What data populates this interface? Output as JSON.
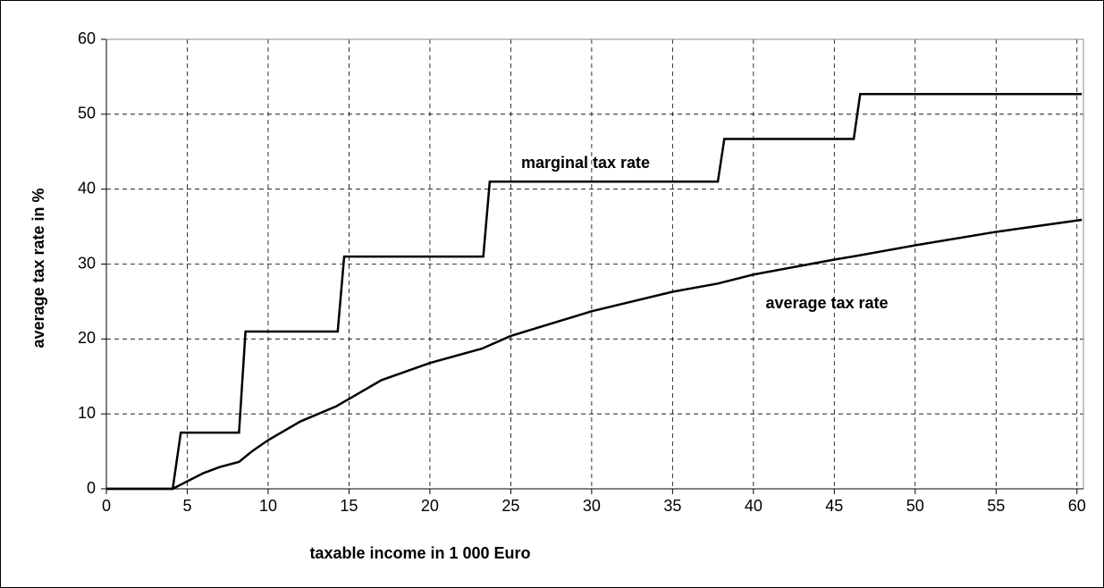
{
  "chart_data": {
    "type": "line",
    "x_label": "taxable income in 1 000 Euro",
    "y_label": "average tax rate in %",
    "xlim": [
      0,
      60.4
    ],
    "ylim": [
      0,
      60
    ],
    "xticks": [
      0,
      5,
      10,
      15,
      20,
      25,
      30,
      35,
      40,
      45,
      50,
      55,
      60
    ],
    "yticks": [
      0,
      10,
      20,
      30,
      40,
      50,
      60
    ],
    "grid": true,
    "series": [
      {
        "name": "marginal tax rate",
        "color": "#000000",
        "x": [
          0,
          4.1,
          4.6,
          8.2,
          8.6,
          14.3,
          14.7,
          23.3,
          23.7,
          37.8,
          38.2,
          46.2,
          46.6,
          60.3
        ],
        "values": [
          0,
          0,
          7.5,
          7.5,
          21,
          21,
          31,
          31,
          41,
          41,
          46.7,
          46.7,
          52.7,
          52.7
        ]
      },
      {
        "name": "average tax rate",
        "color": "#000000",
        "x": [
          0,
          4.1,
          5,
          6,
          7,
          8.2,
          9,
          10,
          12,
          14.2,
          15,
          17,
          20,
          23.2,
          25,
          30,
          35,
          37.8,
          40,
          45,
          46.4,
          50,
          55,
          60.3
        ],
        "values": [
          0,
          0,
          1,
          2.1,
          2.9,
          3.6,
          5,
          6.5,
          9,
          11,
          12,
          14.5,
          16.8,
          18.7,
          20.4,
          23.7,
          26.3,
          27.4,
          28.6,
          30.6,
          31.1,
          32.5,
          34.3,
          35.9
        ]
      }
    ]
  }
}
